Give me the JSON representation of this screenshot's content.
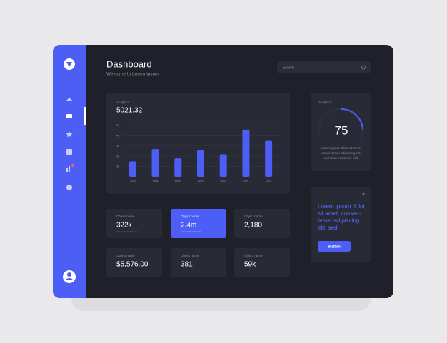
{
  "header": {
    "title": "Dashboard",
    "subtitle": "Welcome to Lorem ipsum",
    "search": "Search"
  },
  "analytics": {
    "label": "Analytics",
    "total": "5021.32"
  },
  "chart_data": {
    "type": "bar",
    "categories": [
      "JAN",
      "FEB",
      "MAR",
      "APR",
      "MAY",
      "JUN",
      "JUL"
    ],
    "values": [
      1500,
      2700,
      1800,
      2600,
      2200,
      4600,
      3500
    ],
    "color": "#4c5ef5",
    "ylim": [
      0,
      5000
    ],
    "yticks": [
      {
        "value": 1000,
        "label": "1k"
      },
      {
        "value": 2000,
        "label": "2k"
      },
      {
        "value": 3000,
        "label": "3k"
      },
      {
        "value": 4000,
        "label": "4k"
      },
      {
        "value": 5000,
        "label": "5k"
      }
    ],
    "grid": true
  },
  "gauge": {
    "label": "Analytics",
    "value": "75",
    "text": [
      "Lorem ipsum dolor sit amet,",
      "consectetuer adipiscing elit,",
      "sed diam nonummy nibh"
    ]
  },
  "promo": {
    "text": [
      "Lorem ipsum dolor",
      "sit amet, consec-",
      "tetuer adipiscing",
      "elit, sed."
    ],
    "button": "Button"
  },
  "cards": [
    {
      "label": "Object name",
      "value": "322k",
      "note": "Lorem ipsum dolor sit"
    },
    {
      "label": "Object name",
      "value": "2.4m",
      "note": "Lorem ipsum dolor sit"
    },
    {
      "label": "Object name",
      "value": "2,180"
    },
    {
      "label": "Object name",
      "value": "$5,576.00"
    },
    {
      "label": "Object name",
      "value": "381"
    },
    {
      "label": "Object name",
      "value": "59k"
    }
  ]
}
